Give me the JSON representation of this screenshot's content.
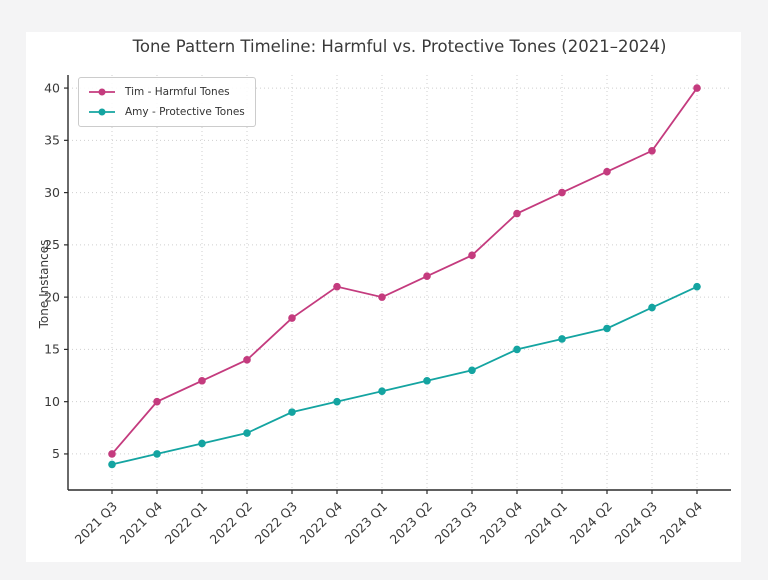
{
  "page": {
    "background": "#f4f4f5",
    "figure_background": "#ffffff"
  },
  "chart_data": {
    "type": "line",
    "title": "Tone Pattern Timeline: Harmful vs. Protective Tones (2021–2024)",
    "xlabel": "",
    "ylabel": "Tone Instances",
    "categories": [
      "2021 Q3",
      "2021 Q4",
      "2022 Q1",
      "2022 Q2",
      "2022 Q3",
      "2022 Q4",
      "2023 Q1",
      "2023 Q2",
      "2023 Q3",
      "2023 Q4",
      "2024 Q1",
      "2024 Q2",
      "2024 Q3",
      "2024 Q4"
    ],
    "series": [
      {
        "name": "Tim - Harmful Tones",
        "color": "#c43b7e",
        "marker": "circle",
        "values": [
          5,
          10,
          12,
          14,
          18,
          21,
          20,
          22,
          24,
          28,
          30,
          32,
          34,
          40
        ]
      },
      {
        "name": "Amy - Protective Tones",
        "color": "#14a4a1",
        "marker": "circle",
        "values": [
          4,
          5,
          6,
          7,
          9,
          10,
          11,
          12,
          13,
          15,
          16,
          17,
          19,
          21
        ]
      }
    ],
    "yticks": [
      5,
      10,
      15,
      20,
      25,
      30,
      35,
      40
    ],
    "ylim": [
      1.55,
      41.25
    ],
    "grid": true,
    "grid_style": "dotted",
    "x_tick_rotation": 45,
    "legend_position": "upper left",
    "spines": [
      "left",
      "bottom"
    ]
  }
}
